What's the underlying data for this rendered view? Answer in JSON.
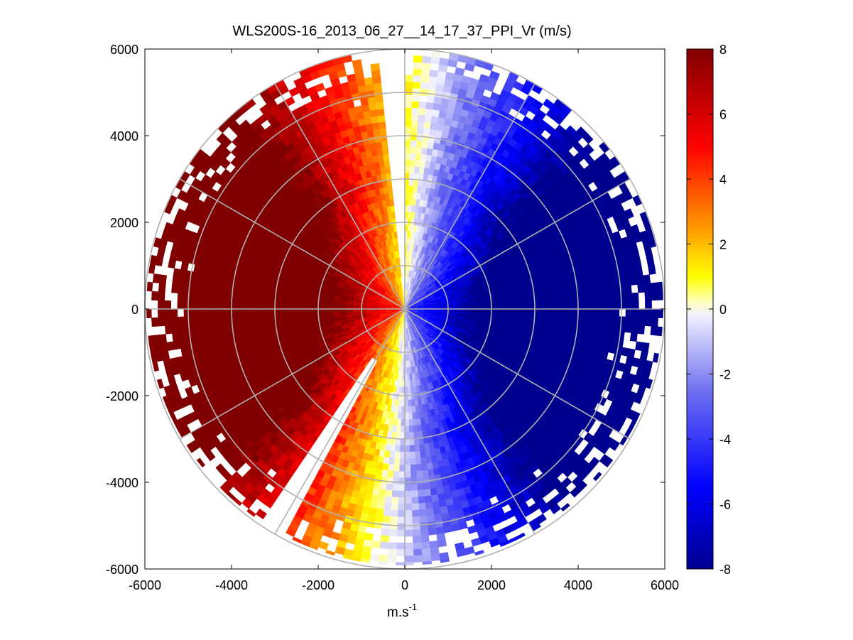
{
  "chart_data": {
    "type": "heatmap",
    "subtype": "polar-ppi-radial-velocity",
    "title": "WLS200S-16_2013_06_27__14_17_37_PPI_Vr (m/s)",
    "xlabel": "m.s",
    "xlabel_superscript": "-1",
    "ylabel": "",
    "xlim": [
      -6000,
      6000
    ],
    "ylim": [
      -6000,
      6000
    ],
    "x_ticks": [
      -6000,
      -4000,
      -2000,
      0,
      2000,
      4000,
      6000
    ],
    "y_ticks": [
      -6000,
      -4000,
      -2000,
      0,
      2000,
      4000,
      6000
    ],
    "x_tick_labels": [
      "-6000",
      "-4000",
      "-2000",
      "0",
      "2000",
      "4000",
      "6000"
    ],
    "y_tick_labels": [
      "-6000",
      "-4000",
      "-2000",
      "0",
      "2000",
      "4000",
      "6000"
    ],
    "max_range_m": 6000,
    "range_rings_m": [
      1000,
      2000,
      3000,
      4000,
      5000,
      6000
    ],
    "spokes_deg_from_north": [
      0,
      30,
      60,
      90,
      120,
      150,
      180,
      210,
      240,
      270,
      300,
      330
    ],
    "grid": true,
    "colorbar": {
      "vmin": -8,
      "vmax": 8,
      "ticks": [
        8,
        6,
        4,
        2,
        0,
        -2,
        -4,
        -6,
        -8
      ],
      "tick_labels": [
        "8",
        "6",
        "4",
        "2",
        "0",
        "-2",
        "-4",
        "-6",
        "-8"
      ],
      "placement": "right"
    },
    "colormap_stops": [
      {
        "value": -8,
        "color": "#00008f"
      },
      {
        "value": -5.5,
        "color": "#0000ff"
      },
      {
        "value": -2.5,
        "color": "#7070f0"
      },
      {
        "value": -0.2,
        "color": "#f0f0ff"
      },
      {
        "value": 0.2,
        "color": "#ffffc0"
      },
      {
        "value": 1,
        "color": "#ffff00"
      },
      {
        "value": 2.5,
        "color": "#ff9900"
      },
      {
        "value": 5,
        "color": "#ff0000"
      },
      {
        "value": 8,
        "color": "#800000"
      }
    ],
    "velocity_field": {
      "zero_line_azimuth_deg_from_north": 5,
      "approx_peak_positive_ms": 8,
      "approx_peak_negative_ms": -8,
      "positive_sector": "west",
      "negative_sector": "east"
    },
    "data_gaps": [
      {
        "from_azimuth_deg": 355,
        "to_azimuth_deg": 360,
        "from_range_m": 300,
        "to_range_m": 6000
      },
      {
        "from_azimuth_deg": 208,
        "to_azimuth_deg": 214,
        "from_range_m": 1400,
        "to_range_m": 6000
      }
    ]
  }
}
